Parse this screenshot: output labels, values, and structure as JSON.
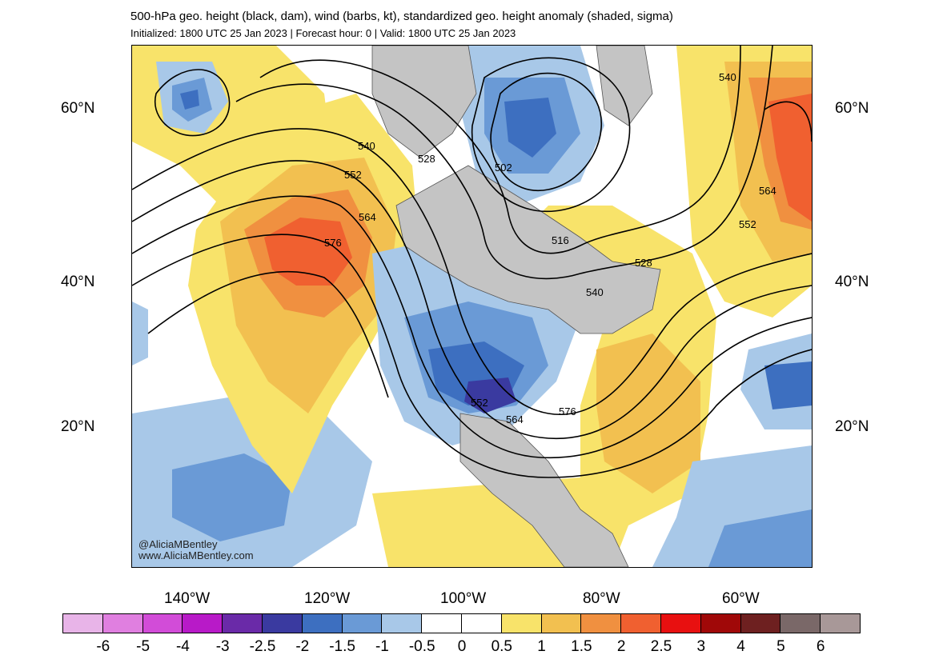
{
  "header": {
    "title": "500-hPa geo. height (black, dam), wind (barbs, kt), standardized geo. height anomaly (shaded, sigma)",
    "subtitle": "Initialized: 1800 UTC 25 Jan 2023 | Forecast hour: 0 | Valid: 1800 UTC 25 Jan 2023"
  },
  "map": {
    "lat_labels": [
      "60°N",
      "40°N",
      "20°N"
    ],
    "lon_labels": [
      "140°W",
      "120°W",
      "100°W",
      "80°W",
      "60°W"
    ],
    "contour_labels": [
      "540",
      "528",
      "552",
      "564",
      "576",
      "502",
      "516",
      "528",
      "540",
      "552",
      "564",
      "576",
      "552",
      "564",
      "540"
    ],
    "credit": [
      "@AliciaMBentley",
      "www.AliciaMBentley.com"
    ]
  },
  "colorbar": {
    "labels": [
      "-6",
      "-5",
      "-4",
      "-3",
      "-2.5",
      "-2",
      "-1.5",
      "-1",
      "-0.5",
      "0",
      "0.5",
      "1",
      "1.5",
      "2",
      "2.5",
      "3",
      "4",
      "5",
      "6"
    ],
    "colors": [
      "#e8b4e8",
      "#e07fe0",
      "#d24cd8",
      "#b81ac8",
      "#6a2aa8",
      "#3a3aa0",
      "#3d6fc0",
      "#6a9ad6",
      "#a8c8e8",
      "#ffffff",
      "#ffffff",
      "#f8e36a",
      "#f2c050",
      "#f09040",
      "#f06030",
      "#e81010",
      "#a00808",
      "#6e2020",
      "#7a6868",
      "#a89898"
    ]
  }
}
